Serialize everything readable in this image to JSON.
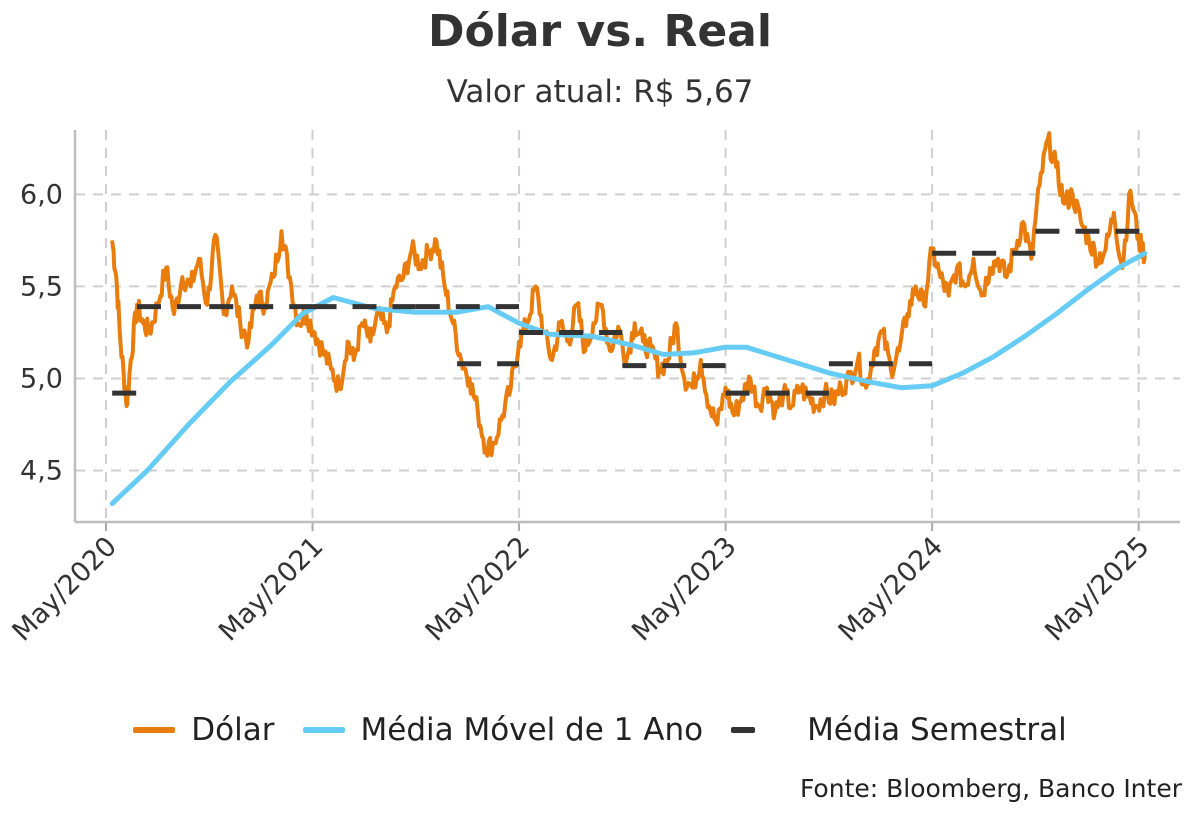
{
  "title": "Dólar vs. Real",
  "subtitle": "Valor atual: R$ 5,67",
  "source": "Fonte: Bloomberg, Banco Inter",
  "chart_data": {
    "type": "line",
    "y_ticks": [
      "4,5",
      "5,0",
      "5,5",
      "6,0"
    ],
    "ylim": [
      4.22,
      6.35
    ],
    "x_ticks": [
      "May/2020",
      "May/2021",
      "May/2022",
      "May/2023",
      "May/2024",
      "May/2025"
    ],
    "xlim": [
      2019.85,
      2025.2
    ],
    "grid": true,
    "legend_position": "bottom",
    "series": [
      {
        "name": "Dólar",
        "color": "#e87d0e",
        "x": [
          2020.03,
          2020.05,
          2020.07,
          2020.1,
          2020.12,
          2020.15,
          2020.18,
          2020.21,
          2020.25,
          2020.29,
          2020.33,
          2020.37,
          2020.41,
          2020.45,
          2020.49,
          2020.53,
          2020.57,
          2020.61,
          2020.65,
          2020.69,
          2020.73,
          2020.77,
          2020.81,
          2020.85,
          2020.89,
          2020.93,
          2020.97,
          2021.01,
          2021.05,
          2021.09,
          2021.13,
          2021.17,
          2021.2,
          2021.24,
          2021.28,
          2021.32,
          2021.36,
          2021.4,
          2021.44,
          2021.48,
          2021.52,
          2021.56,
          2021.6,
          2021.64,
          2021.68,
          2021.72,
          2021.76,
          2021.8,
          2021.84,
          2021.88,
          2021.92,
          2021.96,
          2022.0,
          2022.04,
          2022.08,
          2022.12,
          2022.16,
          2022.2,
          2022.24,
          2022.28,
          2022.32,
          2022.36,
          2022.4,
          2022.44,
          2022.48,
          2022.52,
          2022.56,
          2022.6,
          2022.64,
          2022.68,
          2022.72,
          2022.76,
          2022.8,
          2022.84,
          2022.88,
          2022.92,
          2022.96,
          2023.0,
          2023.04,
          2023.08,
          2023.12,
          2023.16,
          2023.2,
          2023.24,
          2023.28,
          2023.32,
          2023.36,
          2023.4,
          2023.44,
          2023.48,
          2023.52,
          2023.56,
          2023.6,
          2023.64,
          2023.68,
          2023.72,
          2023.76,
          2023.8,
          2023.84,
          2023.88,
          2023.92,
          2023.96,
          2024.0,
          2024.04,
          2024.08,
          2024.12,
          2024.16,
          2024.2,
          2024.24,
          2024.28,
          2024.32,
          2024.36,
          2024.4,
          2024.44,
          2024.48,
          2024.52,
          2024.56,
          2024.6,
          2024.64,
          2024.68,
          2024.72,
          2024.76,
          2024.8,
          2024.84,
          2024.88,
          2024.92,
          2024.96,
          2025.0,
          2025.03
        ],
        "y": [
          5.75,
          5.55,
          5.2,
          4.85,
          5.1,
          5.4,
          5.3,
          5.25,
          5.4,
          5.6,
          5.35,
          5.55,
          5.5,
          5.65,
          5.4,
          5.78,
          5.35,
          5.5,
          5.3,
          5.2,
          5.45,
          5.4,
          5.55,
          5.8,
          5.55,
          5.3,
          5.35,
          5.25,
          5.15,
          5.05,
          4.95,
          5.2,
          5.1,
          5.3,
          5.2,
          5.35,
          5.25,
          5.5,
          5.55,
          5.7,
          5.62,
          5.68,
          5.75,
          5.5,
          5.3,
          5.1,
          5.0,
          4.82,
          4.62,
          4.65,
          4.8,
          4.95,
          5.2,
          5.3,
          5.5,
          5.25,
          5.1,
          5.3,
          5.2,
          5.4,
          5.15,
          5.3,
          5.4,
          5.15,
          5.28,
          5.1,
          5.3,
          5.2,
          5.15,
          5.05,
          5.1,
          5.3,
          5.0,
          4.95,
          5.1,
          4.85,
          4.75,
          4.95,
          4.8,
          4.9,
          5.0,
          4.85,
          4.95,
          4.82,
          4.92,
          4.85,
          4.95,
          4.9,
          4.85,
          4.92,
          4.88,
          4.95,
          5.0,
          5.1,
          4.95,
          5.15,
          5.25,
          5.05,
          5.15,
          5.35,
          5.5,
          5.4,
          5.7,
          5.55,
          5.45,
          5.6,
          5.5,
          5.65,
          5.45,
          5.6,
          5.65,
          5.55,
          5.7,
          5.85,
          5.65,
          6.05,
          6.3,
          6.15,
          5.95,
          6.0,
          5.85,
          5.75,
          5.65,
          5.7,
          5.9,
          5.6,
          6.02,
          5.75,
          5.67
        ]
      },
      {
        "name": "Média Móvel de 1 Ano",
        "color": "#66ccf5",
        "x": [
          2020.03,
          2020.2,
          2020.4,
          2020.6,
          2020.8,
          2020.95,
          2021.1,
          2021.3,
          2021.5,
          2021.7,
          2021.85,
          2022.0,
          2022.15,
          2022.35,
          2022.55,
          2022.7,
          2022.85,
          2023.0,
          2023.1,
          2023.3,
          2023.5,
          2023.7,
          2023.85,
          2024.0,
          2024.15,
          2024.3,
          2024.45,
          2024.6,
          2024.75,
          2024.9,
          2025.03
        ],
        "y": [
          4.32,
          4.5,
          4.75,
          4.98,
          5.18,
          5.35,
          5.44,
          5.38,
          5.36,
          5.36,
          5.39,
          5.3,
          5.24,
          5.23,
          5.18,
          5.13,
          5.14,
          5.17,
          5.17,
          5.1,
          5.03,
          4.98,
          4.95,
          4.96,
          5.03,
          5.12,
          5.23,
          5.35,
          5.48,
          5.6,
          5.68
        ]
      },
      {
        "name": "Média Semestral",
        "color": "#333333",
        "segments": [
          {
            "x0": 2020.03,
            "x1": 2020.15,
            "y": 4.92
          },
          {
            "x0": 2020.15,
            "x1": 2020.5,
            "y": 5.39
          },
          {
            "x0": 2020.5,
            "x1": 2021.0,
            "y": 5.39
          },
          {
            "x0": 2021.0,
            "x1": 2021.5,
            "y": 5.39
          },
          {
            "x0": 2021.5,
            "x1": 2022.0,
            "y": 5.39
          },
          {
            "x0": 2021.7,
            "x1": 2022.0,
            "y": 5.08
          },
          {
            "x0": 2022.0,
            "x1": 2022.5,
            "y": 5.25
          },
          {
            "x0": 2022.5,
            "x1": 2023.0,
            "y": 5.07
          },
          {
            "x0": 2023.0,
            "x1": 2023.5,
            "y": 4.92
          },
          {
            "x0": 2023.5,
            "x1": 2024.0,
            "y": 5.08
          },
          {
            "x0": 2024.0,
            "x1": 2024.5,
            "y": 5.68
          },
          {
            "x0": 2024.5,
            "x1": 2025.03,
            "y": 5.8
          }
        ]
      }
    ]
  }
}
